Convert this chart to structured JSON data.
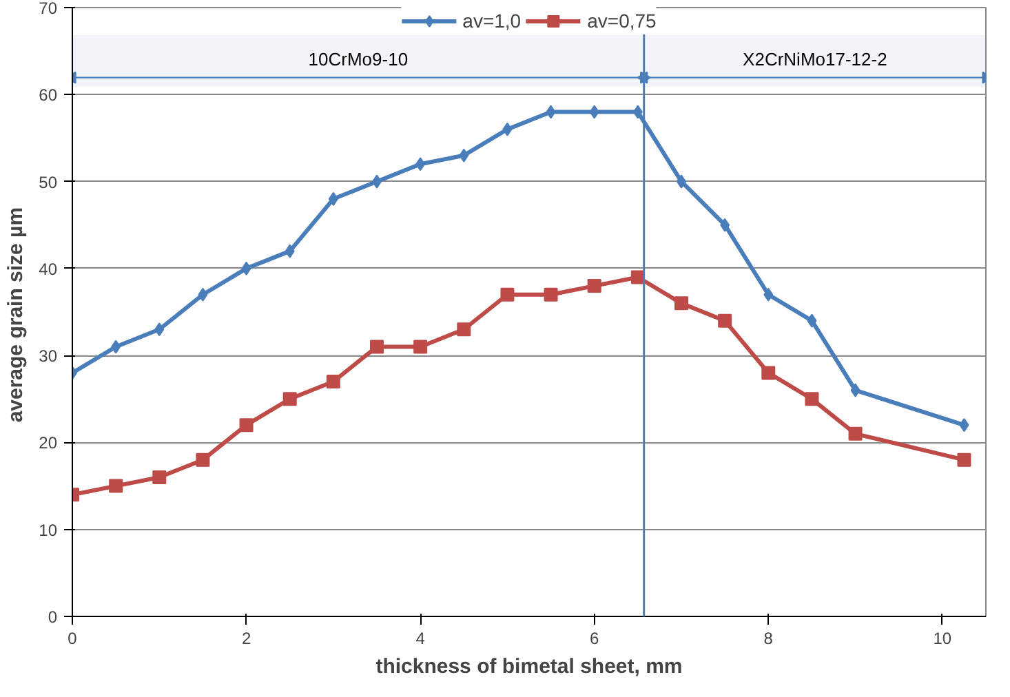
{
  "chart_data": {
    "type": "line",
    "xlabel": "thickness of bimetal sheet, mm",
    "ylabel": "average grain size  µm",
    "x": [
      0,
      0.5,
      1,
      1.5,
      2,
      2.5,
      3,
      3.5,
      4,
      4.5,
      5,
      5.5,
      6,
      6.5,
      7,
      7.5,
      8,
      8.5,
      9,
      10.25
    ],
    "series": [
      {
        "name": "av=1,0",
        "color": "#4a7ebb",
        "marker": "diamond",
        "values": [
          28,
          31,
          33,
          37,
          40,
          42,
          48,
          50,
          52,
          53,
          56,
          58,
          58,
          58,
          50,
          45,
          37,
          34,
          26,
          22
        ]
      },
      {
        "name": "av=0,75",
        "color": "#be4b48",
        "marker": "square",
        "values": [
          14,
          15,
          16,
          18,
          22,
          25,
          27,
          31,
          31,
          33,
          37,
          37,
          38,
          39,
          36,
          34,
          28,
          25,
          21,
          18
        ]
      }
    ],
    "xlim": [
      0,
      10.5
    ],
    "xticks": [
      0,
      2,
      4,
      6,
      8,
      10
    ],
    "ylim": [
      0,
      70
    ],
    "yticks": [
      0,
      10,
      20,
      30,
      40,
      50,
      60,
      70
    ],
    "grid": "y",
    "legend": "top",
    "ref_lines": [
      {
        "axis": "x",
        "value": 6.57,
        "color": "#4a7ebb"
      }
    ],
    "bands": [
      {
        "axis": "x",
        "from": 0,
        "to": 6.57,
        "label": "10CrMo9-10",
        "color": "#4a7ebb"
      },
      {
        "axis": "x",
        "from": 6.57,
        "to": 10.5,
        "label": "X2CrNiMo17-12-2",
        "color": "#4a7ebb"
      }
    ]
  }
}
